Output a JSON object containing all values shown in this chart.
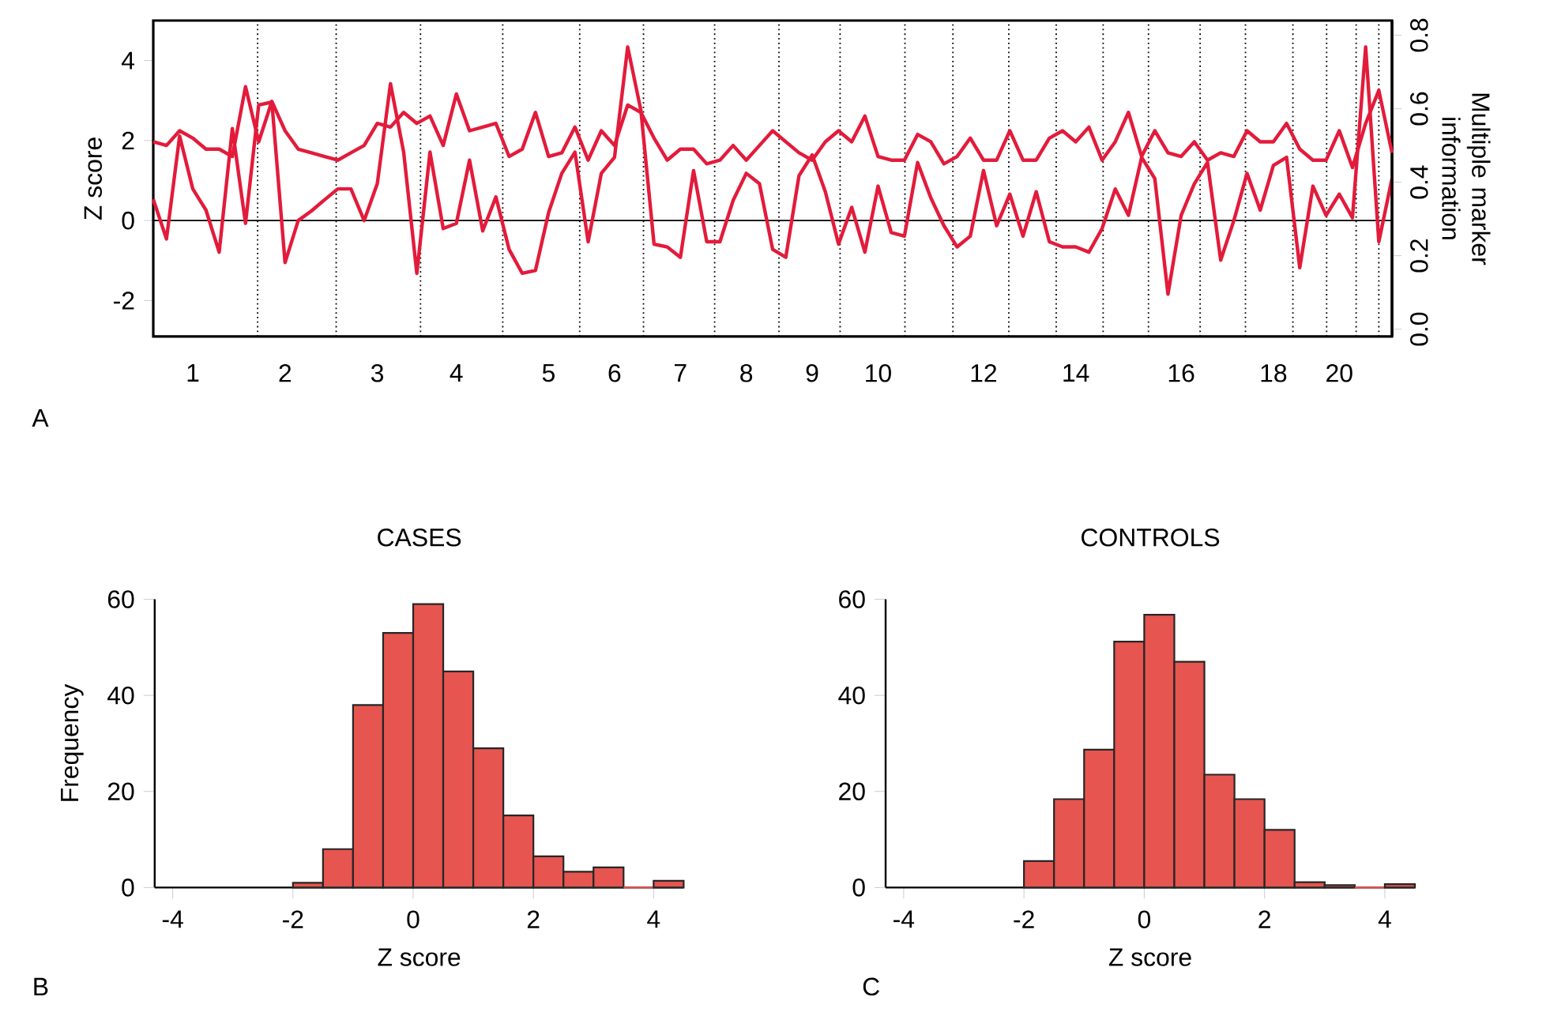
{
  "chart_data": [
    {
      "type": "line",
      "ylabel": "Z score",
      "y2label": "Multiple marker information",
      "annotations": [
        "A"
      ],
      "marker": "none",
      "line_style": "solid",
      "categories": [
        null,
        null,
        null,
        "1",
        null,
        null,
        null,
        null,
        null,
        null,
        "2",
        null,
        null,
        null,
        null,
        null,
        null,
        "3",
        null,
        null,
        null,
        null,
        null,
        "4",
        null,
        null,
        null,
        null,
        null,
        null,
        "5",
        null,
        null,
        null,
        null,
        "6",
        null,
        null,
        null,
        null,
        "7",
        null,
        null,
        null,
        null,
        "8",
        null,
        null,
        null,
        null,
        "9",
        null,
        null,
        null,
        null,
        "10",
        null,
        null,
        null,
        null,
        null,
        null,
        null,
        "12",
        null,
        null,
        null,
        null,
        null,
        null,
        "14",
        null,
        null,
        null,
        null,
        null,
        null,
        null,
        "16",
        null,
        null,
        null,
        null,
        null,
        null,
        "18",
        null,
        null,
        null,
        null,
        "20",
        null,
        null,
        null,
        null
      ],
      "ylim": [
        -2.9,
        5.0
      ],
      "yticks": [
        -2,
        0,
        2,
        4
      ],
      "y2lim": [
        -0.02,
        0.84
      ],
      "y2ticks": [
        {
          "value": 0,
          "label": "0.0"
        },
        0.2,
        0.4,
        0.6,
        0.8
      ],
      "ref_lines": [
        {
          "axis": "y",
          "value": 0,
          "color": "#000000",
          "line_style": "solid"
        }
      ],
      "series": [
        {
          "type": "line",
          "color": "#e31b3b",
          "values": [
            0.53,
            -0.46,
            2.11,
            0.79,
            0.26,
            -0.79,
            2.3,
            -0.07,
            2.89,
            2.96,
            -1.05,
            0,
            0.24,
            0.52,
            0.79,
            0.79,
            0,
            0.92,
            3.42,
            1.71,
            -1.32,
            1.71,
            -0.2,
            -0.07,
            1.51,
            -0.26,
            0.59,
            -0.72,
            -1.32,
            -1.25,
            0.2,
            1.18,
            1.71,
            -0.53,
            1.18,
            1.58,
            4.34,
            2.76,
            -0.59,
            -0.66,
            -0.92,
            1.25,
            -0.53,
            -0.53,
            0.5,
            1.18,
            0.92,
            -0.72,
            -0.92,
            1.12,
            1.64,
            0.72,
            -0.59,
            0.33,
            -0.79,
            0.86,
            -0.3,
            -0.39,
            1.45,
            0.57,
            -0.13,
            -0.66,
            -0.39,
            1.25,
            -0.13,
            0.66,
            -0.39,
            0.72,
            -0.53,
            -0.66,
            -0.66,
            -0.79,
            -0.2,
            0.79,
            0.13,
            1.58,
            1.05,
            -1.84,
            0.13,
            0.92,
            1.45,
            -0.99,
            0,
            1.18,
            0.26,
            1.38,
            1.58,
            -1.18,
            0.86,
            0.13,
            0.66,
            0.07,
            4.34,
            -0.53,
            1.05
          ]
        },
        {
          "type": "line",
          "color": "#e31b3b",
          "axis": "y2",
          "values": [
            0.51,
            0.5,
            0.54,
            0.52,
            0.49,
            0.49,
            0.47,
            0.66,
            0.51,
            0.62,
            0.54,
            0.49,
            0.48,
            0.47,
            0.46,
            0.48,
            0.5,
            0.56,
            0.55,
            0.59,
            0.56,
            0.58,
            0.5,
            0.64,
            0.54,
            0.55,
            0.56,
            0.47,
            0.49,
            0.59,
            0.47,
            0.48,
            0.55,
            0.46,
            0.54,
            0.5,
            0.61,
            0.59,
            0.52,
            0.46,
            0.49,
            0.49,
            0.45,
            0.46,
            0.5,
            0.46,
            0.5,
            0.54,
            0.51,
            0.48,
            0.46,
            0.51,
            0.54,
            0.51,
            0.58,
            0.47,
            0.46,
            0.46,
            0.53,
            0.51,
            0.45,
            0.47,
            0.52,
            0.46,
            0.46,
            0.54,
            0.46,
            0.46,
            0.52,
            0.54,
            0.51,
            0.55,
            0.46,
            0.51,
            0.59,
            0.47,
            0.54,
            0.48,
            0.47,
            0.51,
            0.46,
            0.48,
            0.47,
            0.54,
            0.51,
            0.51,
            0.56,
            0.49,
            0.46,
            0.46,
            0.54,
            0.44,
            0.56,
            0.65,
            0.48
          ]
        }
      ]
    },
    {
      "type": "histogram",
      "title": "CASES",
      "xlabel": "Z score",
      "ylabel": "Frequency",
      "annotations": [
        "B"
      ],
      "color": "#e65550",
      "bins": [
        -2,
        -1.5,
        -1,
        -0.5,
        0,
        0.5,
        1,
        1.5,
        2,
        2.5,
        3,
        3.5,
        4,
        4.5
      ],
      "values": [
        1,
        8,
        38,
        53,
        59,
        45,
        29,
        15,
        6.5,
        3.3,
        4.2,
        0,
        1.4
      ],
      "xlim": [
        -4.3,
        4.5
      ],
      "ylim": [
        0,
        60
      ],
      "xticks": [
        -4,
        -2,
        0,
        2,
        4
      ],
      "yticks": [
        0,
        20,
        40,
        60
      ]
    },
    {
      "type": "histogram",
      "title": "CONTROLS",
      "xlabel": "Z score",
      "annotations": [
        "C"
      ],
      "color": "#e65550",
      "bins": [
        -2,
        -1.5,
        -1,
        -0.5,
        0,
        0.5,
        1,
        1.5,
        2,
        2.5,
        3,
        3.5,
        4,
        4.5
      ],
      "values": [
        5.5,
        18.4,
        28.7,
        51.2,
        56.8,
        47,
        23.5,
        18.4,
        12,
        1.1,
        0.5,
        0,
        0.7
      ],
      "xlim": [
        -4.3,
        4.5
      ],
      "ylim": [
        0,
        60
      ],
      "xticks": [
        -4,
        -2,
        0,
        2,
        4
      ],
      "yticks": [
        0,
        20,
        40,
        60
      ]
    }
  ]
}
